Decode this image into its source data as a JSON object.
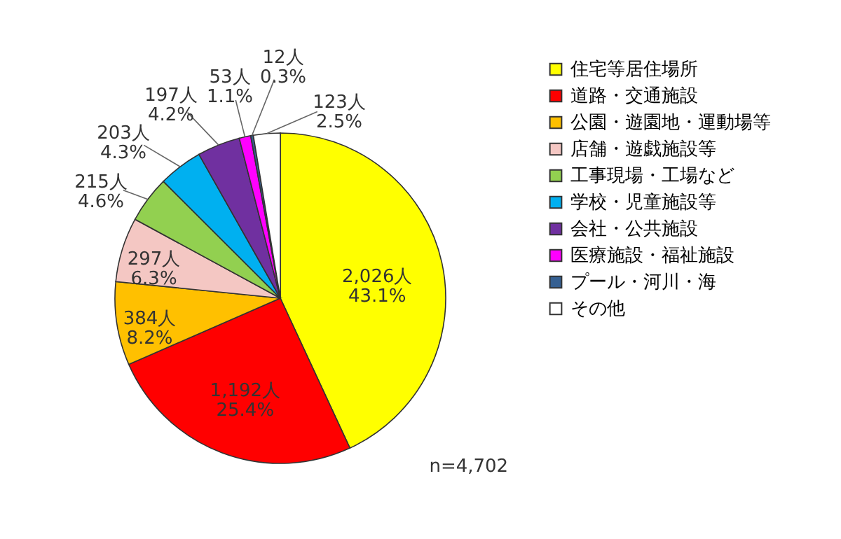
{
  "chart_data": {
    "type": "pie",
    "categories": [
      "住宅等居住場所",
      "道路・交通施設",
      "公園・遊園地・運動場等",
      "店舗・遊戯施設等",
      "工事現場・工場など",
      "学校・児童施設等",
      "会社・公共施設",
      "医療施設・福祉施設",
      "プール・河川・海",
      "その他"
    ],
    "values": [
      2026,
      1192,
      384,
      297,
      215,
      203,
      197,
      53,
      12,
      123
    ],
    "colors": [
      "#ffff00",
      "#ff0000",
      "#ffc000",
      "#f4c7c3",
      "#92d050",
      "#00b0f0",
      "#7030a0",
      "#ff00ff",
      "#366092",
      "#ffffff"
    ],
    "value_labels": [
      "2,026人\n43.1%",
      "1,192人\n25.4%",
      "384人\n8.2%",
      "297人\n6.3%",
      "215人\n4.6%",
      "203人\n4.3%",
      "197人\n4.2%",
      "53人\n1.1%",
      "12人\n0.3%",
      "123人\n2.5%"
    ],
    "annotations": [
      "n=4,702"
    ],
    "legend": "right"
  }
}
